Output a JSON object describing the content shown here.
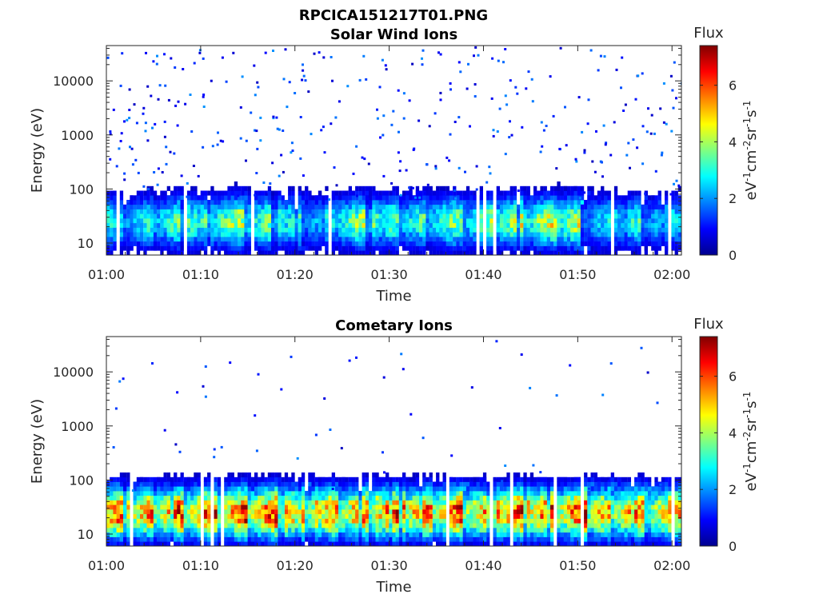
{
  "figure": {
    "title": "RPCICA151217T01.PNG"
  },
  "colorscale": [
    "#00008f",
    "#0000ff",
    "#0080ff",
    "#00ffff",
    "#80ff80",
    "#ffff00",
    "#ff8000",
    "#ff0000",
    "#800000"
  ],
  "chart_data": [
    {
      "type": "heatmap",
      "title": "Solar Wind Ions",
      "xlabel": "Time",
      "ylabel": "Energy (eV)",
      "x_ticks": [
        "01:00",
        "01:10",
        "01:20",
        "01:30",
        "01:40",
        "01:50",
        "02:00"
      ],
      "x_range_min": [
        0,
        61
      ],
      "y_ticks": [
        "10",
        "100",
        "1000",
        "10000"
      ],
      "y_scale": "log",
      "y_range": [
        6,
        45000
      ],
      "colorbar": {
        "label": "Flux",
        "units": "eV-1cm-2sr-1s-1",
        "ticks": [
          "0",
          "2",
          "4",
          "6"
        ],
        "range": [
          0,
          7.4
        ]
      },
      "bursts": [
        {
          "t": 0.5,
          "peak": 3.2,
          "maxE": 150
        },
        {
          "t": 4.5,
          "peak": 3.4,
          "maxE": 120
        },
        {
          "t": 8.0,
          "peak": 4.0,
          "maxE": 200
        },
        {
          "t": 10.8,
          "peak": 3.6,
          "maxE": 250
        },
        {
          "t": 14.0,
          "peak": 4.6,
          "maxE": 180
        },
        {
          "t": 17.2,
          "peak": 4.0,
          "maxE": 100
        },
        {
          "t": 20.5,
          "peak": 3.6,
          "maxE": 220
        },
        {
          "t": 23.5,
          "peak": 3.0,
          "maxE": 120
        },
        {
          "t": 27.0,
          "peak": 4.4,
          "maxE": 150
        },
        {
          "t": 30.3,
          "peak": 3.6,
          "maxE": 200
        },
        {
          "t": 33.5,
          "peak": 3.6,
          "maxE": 150
        },
        {
          "t": 36.8,
          "peak": 4.0,
          "maxE": 250
        },
        {
          "t": 40.5,
          "peak": 4.0,
          "maxE": 120
        },
        {
          "t": 43.8,
          "peak": 4.6,
          "maxE": 150
        },
        {
          "t": 47.0,
          "peak": 4.8,
          "maxE": 250
        },
        {
          "t": 50.2,
          "peak": 5.0,
          "maxE": 220
        },
        {
          "t": 53.2,
          "peak": 3.0,
          "maxE": 120
        },
        {
          "t": 56.5,
          "peak": 3.4,
          "maxE": 100
        },
        {
          "t": 59.5,
          "peak": 3.0,
          "maxE": 120
        }
      ],
      "noise_points": 340
    },
    {
      "type": "heatmap",
      "title": "Cometary Ions",
      "xlabel": "Time",
      "ylabel": "Energy (eV)",
      "x_ticks": [
        "01:00",
        "01:10",
        "01:20",
        "01:30",
        "01:40",
        "01:50",
        "02:00"
      ],
      "x_range_min": [
        0,
        61
      ],
      "y_ticks": [
        "10",
        "100",
        "1000",
        "10000"
      ],
      "y_scale": "log",
      "y_range": [
        6,
        45000
      ],
      "colorbar": {
        "label": "Flux",
        "units": "eV-1cm-2sr-1s-1",
        "ticks": [
          "0",
          "2",
          "4",
          "6"
        ],
        "range": [
          0,
          7.4
        ]
      },
      "bursts": [
        {
          "t": 1.0,
          "peak": 6.4,
          "maxE": 250
        },
        {
          "t": 4.5,
          "peak": 6.0,
          "maxE": 250
        },
        {
          "t": 8.0,
          "peak": 6.8,
          "maxE": 200
        },
        {
          "t": 11.2,
          "peak": 6.8,
          "maxE": 250
        },
        {
          "t": 14.5,
          "peak": 7.0,
          "maxE": 400
        },
        {
          "t": 17.8,
          "peak": 7.0,
          "maxE": 350
        },
        {
          "t": 21.0,
          "peak": 6.8,
          "maxE": 200
        },
        {
          "t": 24.0,
          "peak": 6.0,
          "maxE": 150
        },
        {
          "t": 27.5,
          "peak": 6.8,
          "maxE": 250
        },
        {
          "t": 30.8,
          "peak": 6.8,
          "maxE": 150
        },
        {
          "t": 34.0,
          "peak": 6.4,
          "maxE": 200
        },
        {
          "t": 37.5,
          "peak": 6.8,
          "maxE": 300
        },
        {
          "t": 40.8,
          "peak": 6.4,
          "maxE": 150
        },
        {
          "t": 44.0,
          "peak": 6.8,
          "maxE": 250
        },
        {
          "t": 47.2,
          "peak": 6.8,
          "maxE": 250
        },
        {
          "t": 50.5,
          "peak": 7.2,
          "maxE": 300
        },
        {
          "t": 53.5,
          "peak": 6.4,
          "maxE": 120
        },
        {
          "t": 56.5,
          "peak": 6.4,
          "maxE": 150
        },
        {
          "t": 59.8,
          "peak": 6.0,
          "maxE": 120
        }
      ],
      "noise_points": 60
    }
  ]
}
